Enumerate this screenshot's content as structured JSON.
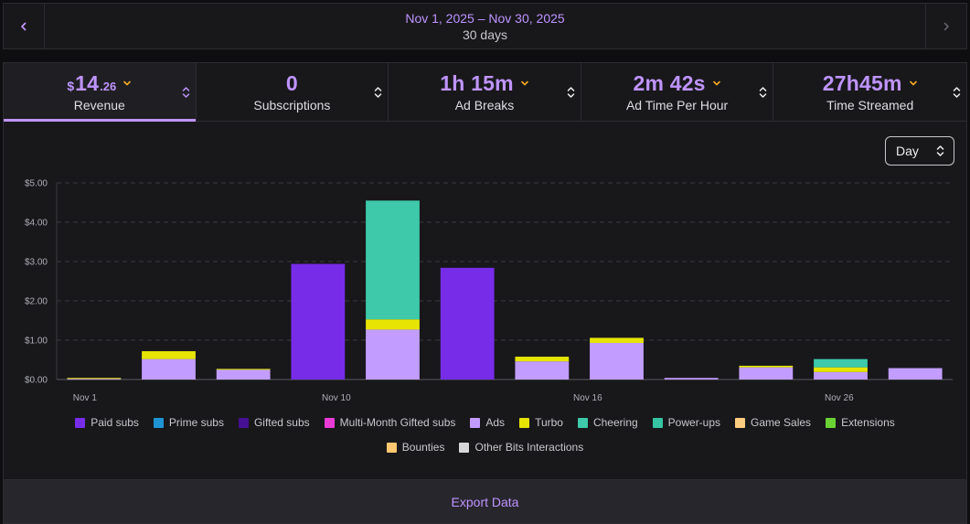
{
  "header": {
    "date_range": "Nov 1, 2025 – Nov 30, 2025",
    "duration": "30 days"
  },
  "tabs": [
    {
      "currency": "$",
      "value": "14",
      "cents": ".26",
      "label": "Revenue",
      "active": true
    },
    {
      "value": "0",
      "label": "Subscriptions"
    },
    {
      "value": "1h 15m",
      "label": "Ad Breaks"
    },
    {
      "value": "2m 42s",
      "label": "Ad Time Per Hour"
    },
    {
      "value": "27h45m",
      "label": "Time Streamed"
    }
  ],
  "granularity": {
    "selected": "Day"
  },
  "export_label": "Export Data",
  "colors": {
    "accent": "#bf94ff",
    "paid_subs": "#772ce8",
    "prime_subs": "#1f94d2",
    "gifted_subs": "#451093",
    "multi_month_gifted_subs": "#eb3bd7",
    "ads": "#c29dff",
    "turbo": "#e7e404",
    "cheering": "#3dc9aa",
    "power_ups": "#36c4a5",
    "game_sales": "#ffcc80",
    "extensions": "#6ad334",
    "bounties": "#ffc871",
    "other_bits": "#d8d8d8"
  },
  "chart_data": {
    "type": "bar",
    "stacked": true,
    "ylim": [
      0,
      5
    ],
    "y_ticks": [
      "$0.00",
      "$1.00",
      "$2.00",
      "$3.00",
      "$4.00",
      "$5.00"
    ],
    "x_tick_labels": [
      {
        "index": 0,
        "label": "Nov 1"
      },
      {
        "index": 3,
        "label": "Nov 10"
      },
      {
        "index": 6,
        "label": "Nov 16"
      },
      {
        "index": 9,
        "label": "Nov 26"
      }
    ],
    "grid": true,
    "legend_position": "bottom",
    "legend": [
      {
        "key": "paid_subs",
        "name": "Paid subs"
      },
      {
        "key": "prime_subs",
        "name": "Prime subs"
      },
      {
        "key": "gifted_subs",
        "name": "Gifted subs"
      },
      {
        "key": "multi_month_gifted_subs",
        "name": "Multi-Month Gifted subs"
      },
      {
        "key": "ads",
        "name": "Ads"
      },
      {
        "key": "turbo",
        "name": "Turbo"
      },
      {
        "key": "cheering",
        "name": "Cheering"
      },
      {
        "key": "power_ups",
        "name": "Power-ups"
      },
      {
        "key": "game_sales",
        "name": "Game Sales"
      },
      {
        "key": "extensions",
        "name": "Extensions"
      },
      {
        "key": "bounties",
        "name": "Bounties"
      },
      {
        "key": "other_bits",
        "name": "Other Bits Interactions"
      }
    ],
    "series": [
      {
        "key": "paid_subs",
        "values": [
          0,
          0,
          0,
          2.94,
          0,
          2.84,
          0,
          0,
          0,
          0,
          0,
          0
        ]
      },
      {
        "key": "ads",
        "values": [
          0.02,
          0.52,
          0.25,
          0,
          1.27,
          0,
          0.46,
          0.93,
          0.04,
          0.31,
          0.19,
          0.29
        ]
      },
      {
        "key": "turbo",
        "values": [
          0.02,
          0.2,
          0.02,
          0,
          0.26,
          0,
          0.12,
          0.13,
          0,
          0.04,
          0.12,
          0
        ]
      },
      {
        "key": "cheering",
        "values": [
          0,
          0,
          0,
          0,
          3.02,
          0,
          0,
          0,
          0,
          0,
          0.21,
          0
        ]
      }
    ]
  }
}
